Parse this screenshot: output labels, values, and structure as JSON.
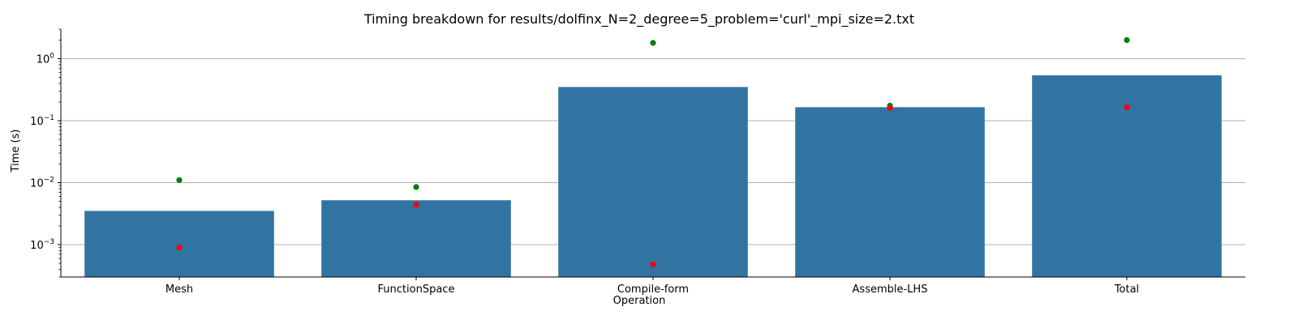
{
  "chart_data": {
    "type": "bar",
    "title": "Timing breakdown for results/dolfinx_N=2_degree=5_problem='curl'_mpi_size=2.txt",
    "xlabel": "Operation",
    "ylabel": "Time (s)",
    "yscale": "log",
    "ylim": [
      0.0003,
      3.0
    ],
    "grid": "y-major",
    "categories": [
      "Mesh",
      "FunctionSpace",
      "Compile-form",
      "Assemble-LHS",
      "Total"
    ],
    "series": [
      {
        "kind": "bar",
        "color": "#3274a1",
        "values": [
          0.0035,
          0.0052,
          0.35,
          0.165,
          0.54
        ]
      },
      {
        "kind": "points",
        "color": "#008000",
        "values": [
          0.011,
          0.0085,
          1.8,
          0.175,
          2.0
        ]
      },
      {
        "kind": "points",
        "color": "#ff0000",
        "values": [
          0.0009,
          0.0044,
          0.00048,
          0.16,
          0.165
        ]
      }
    ],
    "y_ticks": [
      {
        "value": 0.001,
        "base": "10",
        "exp": "−3"
      },
      {
        "value": 0.01,
        "base": "10",
        "exp": "−2"
      },
      {
        "value": 0.1,
        "base": "10",
        "exp": "−1"
      },
      {
        "value": 1,
        "base": "10",
        "exp": "0"
      }
    ]
  }
}
